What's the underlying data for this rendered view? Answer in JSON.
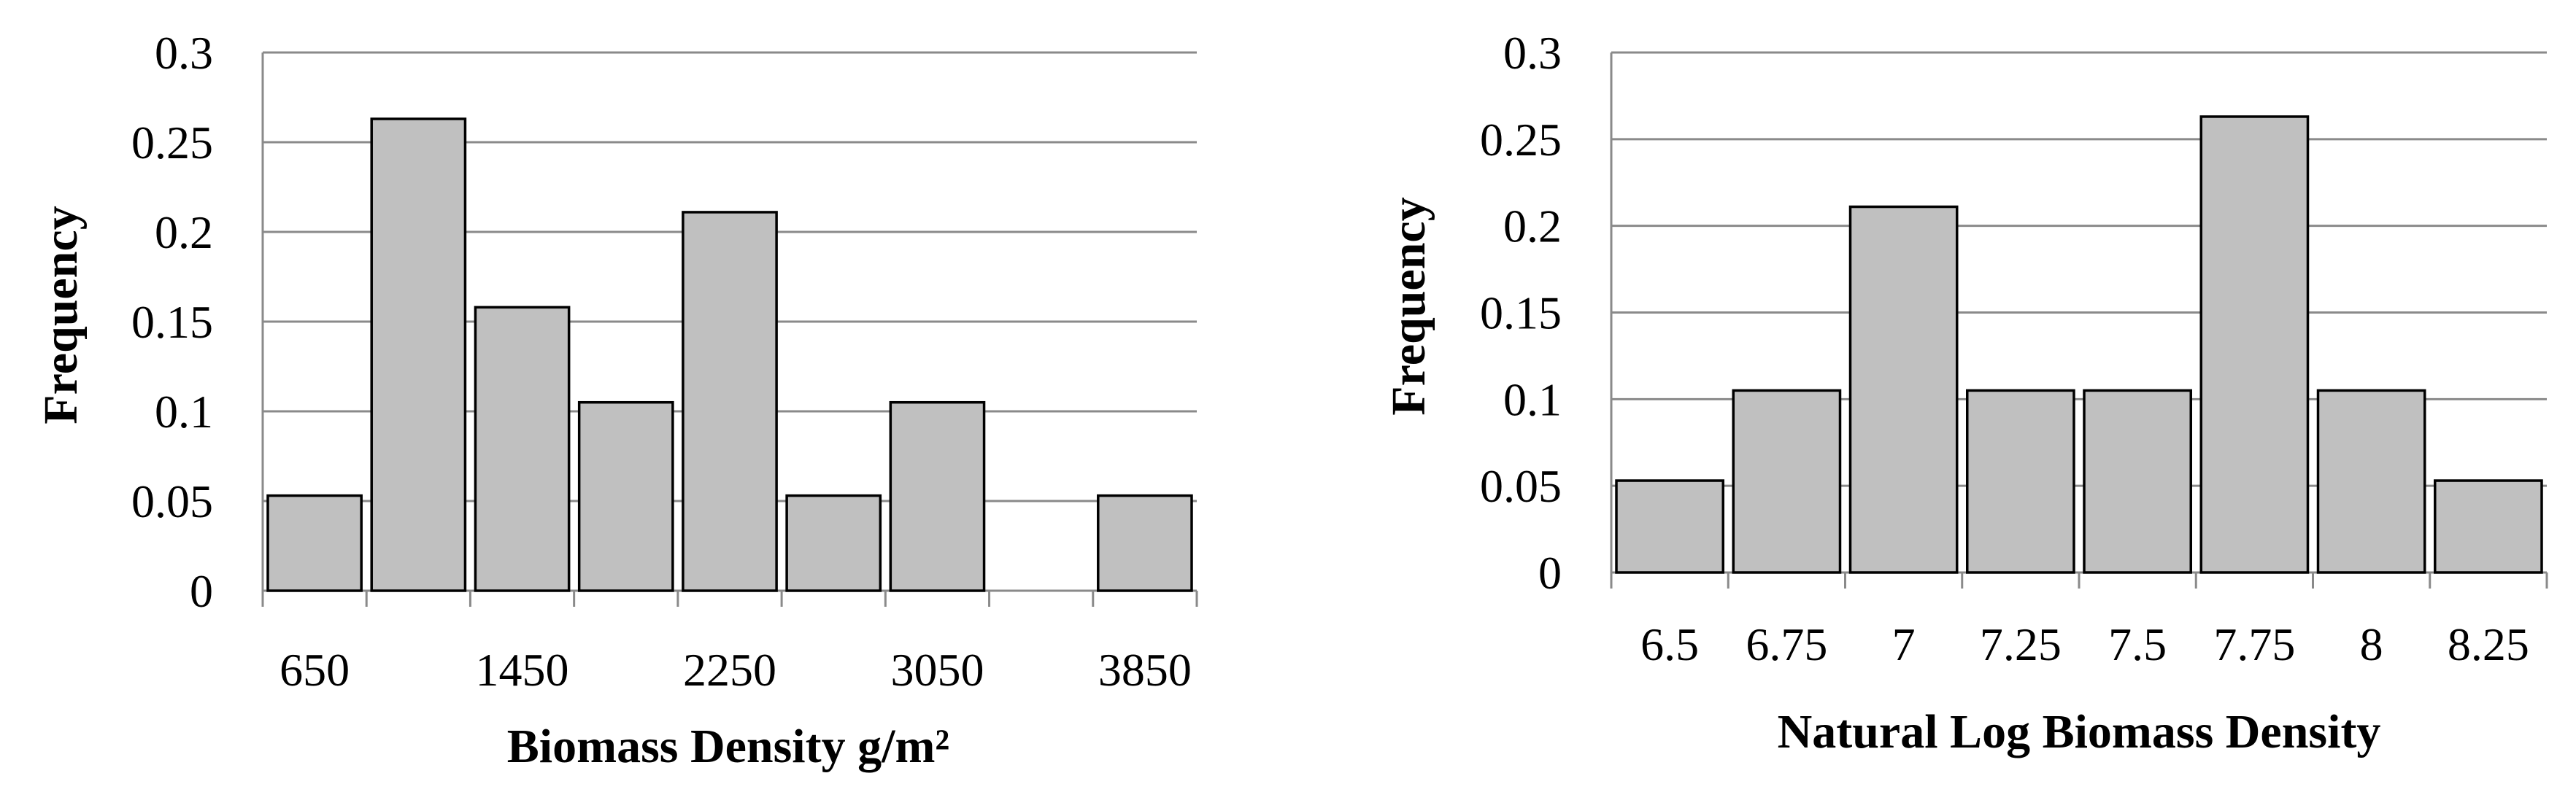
{
  "chart_data": [
    {
      "type": "bar",
      "xlabel": "Biomass Density g/m²",
      "ylabel": "Frequency",
      "ylim": [
        0,
        0.3
      ],
      "yticks": [
        "0",
        "0.05",
        "0.1",
        "0.15",
        "0.2",
        "0.25",
        "0.3"
      ],
      "xticks": [
        "650",
        "1450",
        "2250",
        "3050",
        "3850"
      ],
      "bins": [
        {
          "bin": 1,
          "value": 0.053
        },
        {
          "bin": 2,
          "value": 0.263
        },
        {
          "bin": 3,
          "value": 0.158
        },
        {
          "bin": 4,
          "value": 0.105
        },
        {
          "bin": 5,
          "value": 0.211
        },
        {
          "bin": 6,
          "value": 0.053
        },
        {
          "bin": 7,
          "value": 0.105
        },
        {
          "bin": 8,
          "value": 0
        },
        {
          "bin": 9,
          "value": 0.053
        }
      ],
      "bar_color": "#c0c0c0",
      "grid": true
    },
    {
      "type": "bar",
      "xlabel": "Natural  Log Biomass Density",
      "ylabel": "Frequency",
      "ylim": [
        0,
        0.3
      ],
      "yticks": [
        "0",
        "0.05",
        "0.1",
        "0.15",
        "0.2",
        "0.25",
        "0.3"
      ],
      "categories": [
        "6.5",
        "6.75",
        "7",
        "7.25",
        "7.5",
        "7.75",
        "8",
        "8.25"
      ],
      "values": [
        0.053,
        0.105,
        0.211,
        0.105,
        0.105,
        0.263,
        0.105,
        0.053
      ],
      "bar_color": "#c0c0c0",
      "grid": true
    }
  ]
}
